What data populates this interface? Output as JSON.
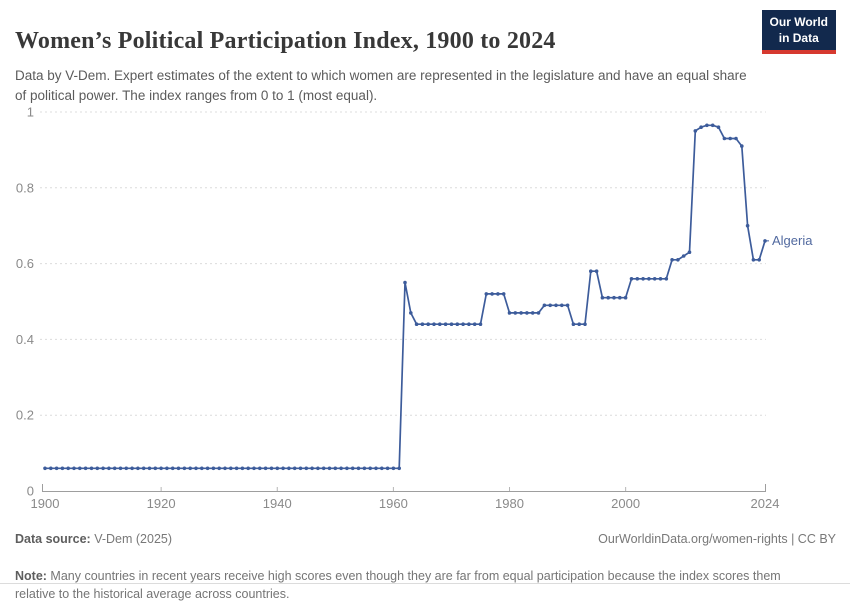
{
  "header": {
    "title": "Women’s Political Participation Index, 1900 to 2024",
    "subtitle": "Data by V-Dem. Expert estimates of the extent to which women are represented in the legislature and have an equal share of political power. The index ranges from 0 to 1 (most equal).",
    "logo": {
      "line1": "Our World",
      "line2": "in Data",
      "bg_color": "#12294d",
      "stripe_color": "#d6392f"
    }
  },
  "chart_data": {
    "type": "line",
    "title": "Women’s Political Participation Index, 1900 to 2024",
    "xlabel": "",
    "ylabel": "",
    "x_axis": {
      "range": [
        1900,
        2024
      ],
      "ticks": [
        1900,
        1920,
        1940,
        1960,
        1980,
        2000,
        2024
      ]
    },
    "y_axis": {
      "range": [
        0,
        1
      ],
      "ticks": [
        0,
        0.2,
        0.4,
        0.6,
        0.8,
        1
      ],
      "grid": "dashed"
    },
    "legend_position": "end-of-line-label",
    "series": [
      {
        "name": "Algeria",
        "color": "#3d5c9b",
        "label_color": "#51699f",
        "x_start": 1900,
        "x_step": 1,
        "values": [
          0.06,
          0.06,
          0.06,
          0.06,
          0.06,
          0.06,
          0.06,
          0.06,
          0.06,
          0.06,
          0.06,
          0.06,
          0.06,
          0.06,
          0.06,
          0.06,
          0.06,
          0.06,
          0.06,
          0.06,
          0.06,
          0.06,
          0.06,
          0.06,
          0.06,
          0.06,
          0.06,
          0.06,
          0.06,
          0.06,
          0.06,
          0.06,
          0.06,
          0.06,
          0.06,
          0.06,
          0.06,
          0.06,
          0.06,
          0.06,
          0.06,
          0.06,
          0.06,
          0.06,
          0.06,
          0.06,
          0.06,
          0.06,
          0.06,
          0.06,
          0.06,
          0.06,
          0.06,
          0.06,
          0.06,
          0.06,
          0.06,
          0.06,
          0.06,
          0.06,
          0.06,
          0.06,
          0.55,
          0.47,
          0.44,
          0.44,
          0.44,
          0.44,
          0.44,
          0.44,
          0.44,
          0.44,
          0.44,
          0.44,
          0.44,
          0.44,
          0.52,
          0.52,
          0.52,
          0.52,
          0.47,
          0.47,
          0.47,
          0.47,
          0.47,
          0.47,
          0.49,
          0.49,
          0.49,
          0.49,
          0.49,
          0.44,
          0.44,
          0.44,
          0.58,
          0.58,
          0.51,
          0.51,
          0.51,
          0.51,
          0.51,
          0.56,
          0.56,
          0.56,
          0.56,
          0.56,
          0.56,
          0.56,
          0.61,
          0.61,
          0.62,
          0.63,
          0.95,
          0.96,
          0.965,
          0.965,
          0.96,
          0.93,
          0.93,
          0.93,
          0.91,
          0.7,
          0.61,
          0.61,
          0.66
        ]
      }
    ]
  },
  "footer": {
    "source_label": "Data source:",
    "source_value": " V-Dem (2025)",
    "link": "OurWorldinData.org/women-rights | CC BY",
    "note_label": "Note:",
    "note_text": " Many countries in recent years receive high scores even though they are far from equal participation because the index scores them relative to the historical average across countries."
  }
}
